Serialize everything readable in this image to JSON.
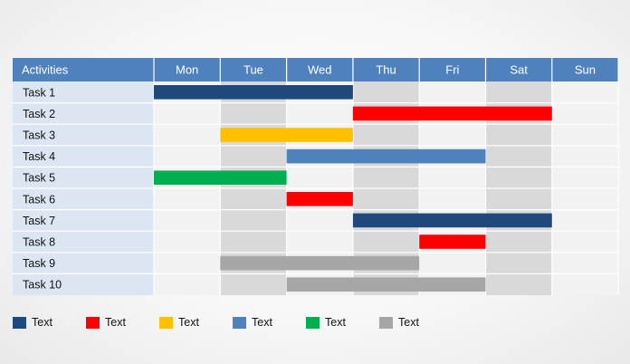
{
  "chart_data": {
    "type": "gantt",
    "header_label": "Activities",
    "days": [
      "Mon",
      "Tue",
      "Wed",
      "Thu",
      "Fri",
      "Sat",
      "Sun"
    ],
    "tasks": [
      {
        "label": "Task 1",
        "start": 0,
        "end": 3,
        "color": "#1f497d"
      },
      {
        "label": "Task 2",
        "start": 3,
        "end": 6,
        "color": "#ff0000"
      },
      {
        "label": "Task 3",
        "start": 1,
        "end": 3,
        "color": "#ffc000"
      },
      {
        "label": "Task 4",
        "start": 2,
        "end": 5,
        "color": "#4f81bd"
      },
      {
        "label": "Task 5",
        "start": 0,
        "end": 2,
        "color": "#00b050"
      },
      {
        "label": "Task 6",
        "start": 2,
        "end": 3,
        "color": "#ff0000"
      },
      {
        "label": "Task 7",
        "start": 3,
        "end": 6,
        "color": "#1f497d"
      },
      {
        "label": "Task 8",
        "start": 4,
        "end": 5,
        "color": "#ff0000"
      },
      {
        "label": "Task 9",
        "start": 1,
        "end": 4,
        "color": "#a6a6a6"
      },
      {
        "label": "Task 10",
        "start": 2,
        "end": 5,
        "color": "#a6a6a6"
      }
    ],
    "shaded_columns": [
      1,
      3,
      5
    ],
    "colors": {
      "header": "#4f81bd",
      "label_column": "#dce6f2",
      "shaded_column": "#d9d9d9",
      "plain_column": "#f2f2f2"
    }
  },
  "legend": [
    {
      "label": "Text",
      "color": "#1f497d"
    },
    {
      "label": "Text",
      "color": "#ff0000"
    },
    {
      "label": "Text",
      "color": "#ffc000"
    },
    {
      "label": "Text",
      "color": "#4f81bd"
    },
    {
      "label": "Text",
      "color": "#00b050"
    },
    {
      "label": "Text",
      "color": "#a6a6a6"
    }
  ]
}
